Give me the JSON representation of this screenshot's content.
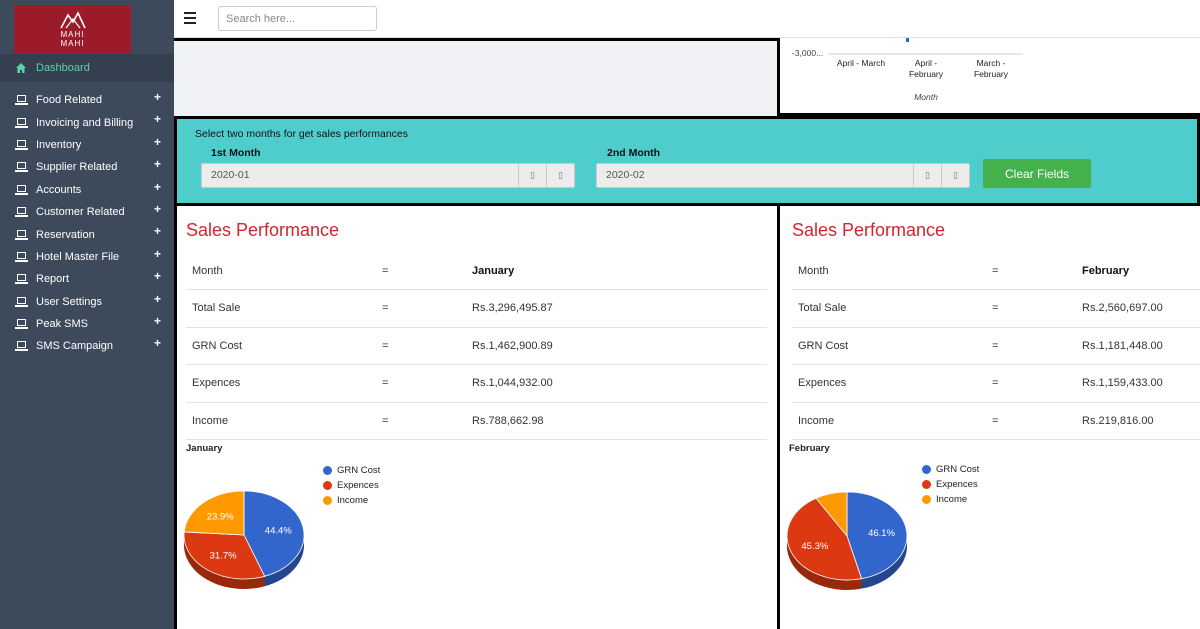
{
  "logo": {
    "line1": "MAHI",
    "line2": "MAHI"
  },
  "sidebar": {
    "dashboard": "Dashboard",
    "items": [
      {
        "label": "Food Related"
      },
      {
        "label": "Invoicing and Billing"
      },
      {
        "label": "Inventory"
      },
      {
        "label": "Supplier Related"
      },
      {
        "label": "Accounts"
      },
      {
        "label": "Customer Related"
      },
      {
        "label": "Reservation"
      },
      {
        "label": "Hotel Master File"
      },
      {
        "label": "Report"
      },
      {
        "label": "User Settings"
      },
      {
        "label": "Peak SMS"
      },
      {
        "label": "SMS Campaign"
      }
    ],
    "expand_symbol": "+"
  },
  "search": {
    "placeholder": "Search here..."
  },
  "top_chart": {
    "y_tick": "-3,000...",
    "categories": [
      "April - March",
      "April - February",
      "March - February"
    ],
    "xlabel": "Month"
  },
  "filter": {
    "hint": "Select two months for get sales performances",
    "first_label": "1st Month",
    "first_value": "2020-01",
    "second_label": "2nd Month",
    "second_value": "2020-02",
    "clear_label": "Clear Fields"
  },
  "colors": {
    "grn": "#3366cc",
    "expences": "#dc3912",
    "income": "#ff9900",
    "accent_title": "#d0262e",
    "teal": "#4ecdcc"
  },
  "performance": [
    {
      "title": "Sales Performance",
      "eq": "=",
      "rows": [
        {
          "label": "Month",
          "value": "January"
        },
        {
          "label": "Total Sale",
          "value": "Rs.3,296,495.87"
        },
        {
          "label": "GRN Cost",
          "value": "Rs.1,462,900.89"
        },
        {
          "label": "Expences",
          "value": "Rs.1,044,932.00"
        },
        {
          "label": "Income",
          "value": "Rs.788,662.98"
        }
      ],
      "pie": {
        "title": "January",
        "slices": [
          {
            "name": "GRN Cost",
            "value": 44.4,
            "label": "44.4%"
          },
          {
            "name": "Expences",
            "value": 31.7,
            "label": "31.7%"
          },
          {
            "name": "Income",
            "value": 23.9,
            "label": "23.9%"
          }
        ]
      }
    },
    {
      "title": "Sales Performance",
      "eq": "=",
      "rows": [
        {
          "label": "Month",
          "value": "February"
        },
        {
          "label": "Total Sale",
          "value": "Rs.2,560,697.00"
        },
        {
          "label": "GRN Cost",
          "value": "Rs.1,181,448.00"
        },
        {
          "label": "Expences",
          "value": "Rs.1,159,433.00"
        },
        {
          "label": "Income",
          "value": "Rs.219,816.00"
        }
      ],
      "pie": {
        "title": "February",
        "slices": [
          {
            "name": "GRN Cost",
            "value": 46.1,
            "label": "46.1%"
          },
          {
            "name": "Expences",
            "value": 45.3,
            "label": "45.3%"
          },
          {
            "name": "Income",
            "value": 8.6,
            "label": ""
          }
        ]
      }
    }
  ]
}
